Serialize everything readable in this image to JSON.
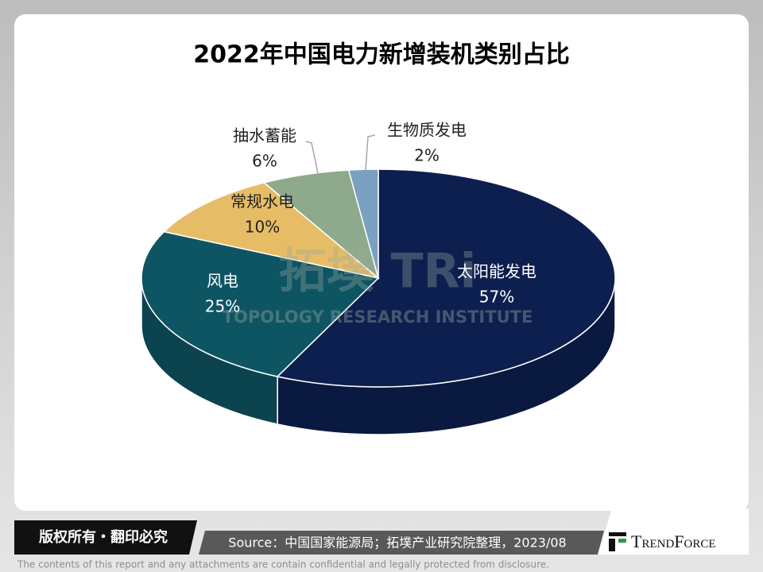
{
  "chart_data": {
    "type": "pie",
    "title": "2022年中国电力新增装机类别占比",
    "categories": [
      "太阳能发电",
      "风电",
      "常规水电",
      "抽水蓄能",
      "生物质发电"
    ],
    "values": [
      57,
      25,
      10,
      6,
      2
    ],
    "value_labels": [
      "57%",
      "25%",
      "10%",
      "6%",
      "2%"
    ],
    "colors": [
      "#0d1f4f",
      "#0e5563",
      "#e6bd66",
      "#8ea98b",
      "#7aa0c2"
    ]
  },
  "watermark": {
    "title": "拓墣 TRi",
    "subtitle": "TOPOLOGY RESEARCH INSTITUTE"
  },
  "footer": {
    "copyright": "版权所有・翻印必究",
    "source": "Source：中国国家能源局；拓墣产业研究院整理，2023/08",
    "logo": "TrendForce",
    "disclaimer": "The contents of this report and any attachments are contain confidential and legally protected from disclosure."
  }
}
